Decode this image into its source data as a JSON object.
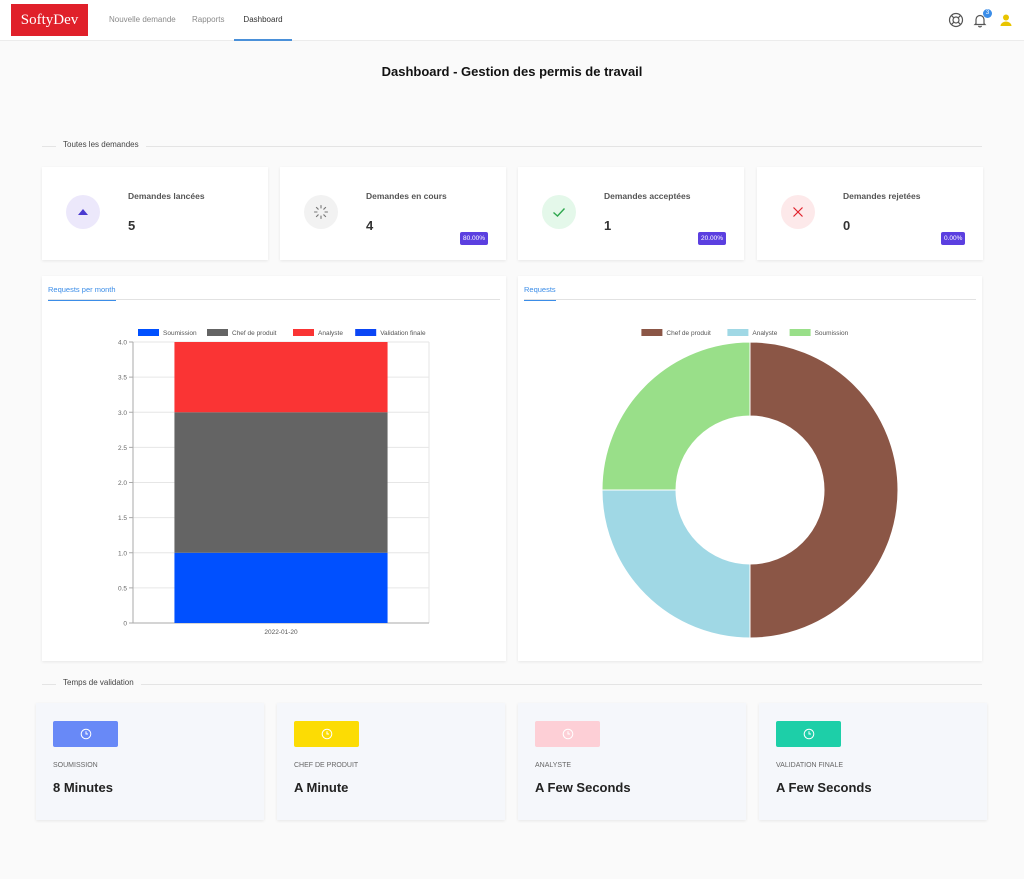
{
  "nav": {
    "logo": "SoftyDev",
    "links": [
      {
        "label": "Nouvelle demande"
      },
      {
        "label": "Rapports"
      },
      {
        "label": "Dashboard"
      }
    ],
    "notification_count": "3"
  },
  "page_title": "Dashboard - Gestion des permis de travail",
  "section_demandes": "Toutes les demandes",
  "stats": [
    {
      "title": "Demandes lancées",
      "value": "5",
      "pct": "",
      "icon": "triangle-up-icon",
      "icon_bg": "#ece8fb",
      "icon_color": "#5b3fe0"
    },
    {
      "title": "Demandes en cours",
      "value": "4",
      "pct": "80.00%",
      "icon": "spinner-icon",
      "icon_bg": "#f2f2f2",
      "icon_color": "#777777"
    },
    {
      "title": "Demandes acceptées",
      "value": "1",
      "pct": "20.00%",
      "icon": "check-icon",
      "icon_bg": "#e4f8ea",
      "icon_color": "#2fa84f"
    },
    {
      "title": "Demandes rejetées",
      "value": "0",
      "pct": "0.00%",
      "icon": "close-icon",
      "icon_bg": "#fde9ea",
      "icon_color": "#e0202a"
    }
  ],
  "bar_card": {
    "tab": "Requests per month"
  },
  "pie_card": {
    "tab": "Requests"
  },
  "chart_data": [
    {
      "type": "bar",
      "stacked": true,
      "categories": [
        "2022-01-20"
      ],
      "series": [
        {
          "name": "Soumission",
          "values": [
            1
          ],
          "color": "#0050ff"
        },
        {
          "name": "Chef de produit",
          "values": [
            2
          ],
          "color": "#646464"
        },
        {
          "name": "Analyste",
          "values": [
            1
          ],
          "color": "#fa3434"
        },
        {
          "name": "Validation finale",
          "values": [
            0
          ],
          "color": "#0b46f5"
        }
      ],
      "ylim": [
        0,
        4
      ],
      "yticks": [
        "0",
        "0.5",
        "1.0",
        "1.5",
        "2.0",
        "2.5",
        "3.0",
        "3.5",
        "4.0"
      ],
      "grid": true,
      "legend": "top"
    },
    {
      "type": "pie",
      "donut": true,
      "labels": [
        "Chef de produit",
        "Analyste",
        "Soumission"
      ],
      "values": [
        2,
        1,
        1
      ],
      "colors": [
        "#8b5646",
        "#a0d8e5",
        "#99df89"
      ],
      "legend": "top"
    }
  ],
  "section_temps": "Temps de validation",
  "times": [
    {
      "label": "Soumission",
      "value": "8 Minutes",
      "color": "#6889f7"
    },
    {
      "label": "Chef de produit",
      "value": "A Minute",
      "color": "#fcdc04"
    },
    {
      "label": "Analyste",
      "value": "A Few Seconds",
      "color": "#fdcfd6"
    },
    {
      "label": "Validation finale",
      "value": "A Few Seconds",
      "color": "#1dcfa8"
    }
  ]
}
